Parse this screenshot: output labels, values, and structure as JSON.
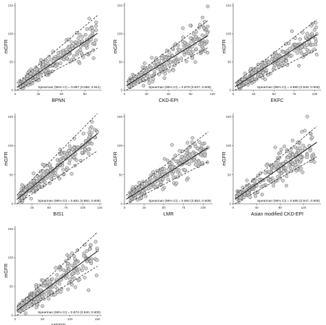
{
  "colors": {
    "point_fill": "#cccccc",
    "point_stroke": "#555555",
    "line": "#222222",
    "axis": "#333333"
  },
  "chart_data": [
    {
      "type": "scatter",
      "xlabel": "BPNN",
      "ylabel": "mGFR",
      "xlim": [
        0,
        112
      ],
      "ylim": [
        0,
        155
      ],
      "xticks": [
        "0",
        "30",
        "60",
        "90"
      ],
      "xtick_values": [
        0,
        30,
        60,
        90
      ],
      "yticks": [
        "0",
        "50",
        "100",
        "150"
      ],
      "ytick_values": [
        0,
        50,
        100,
        150
      ],
      "annotation": "Spearman (95% CI) = 0.887 (0.856, 0.911)",
      "fit": {
        "slope": 0.92,
        "intercept": 3
      },
      "band": {
        "lower_slope": 0.72,
        "lower_intercept": -2,
        "upper_slope": 1.15,
        "upper_intercept": 10
      },
      "grid": false,
      "legend": "none"
    },
    {
      "type": "scatter",
      "xlabel": "CKD-EPI",
      "ylabel": "mGFR",
      "xlim": [
        0,
        120
      ],
      "ylim": [
        0,
        155
      ],
      "xticks": [
        "0",
        "30",
        "60",
        "90",
        "120"
      ],
      "xtick_values": [
        0,
        30,
        60,
        90,
        120
      ],
      "yticks": [
        "0",
        "50",
        "100",
        "150"
      ],
      "ytick_values": [
        0,
        50,
        100,
        150
      ],
      "annotation": "Spearman (95% CI) = 0.879 (0.847, 0.905)",
      "fit": {
        "slope": 0.8,
        "intercept": 6
      },
      "band": {
        "lower_slope": 0.68,
        "lower_intercept": -2,
        "upper_slope": 0.98,
        "upper_intercept": 12
      },
      "grid": false,
      "legend": "none"
    },
    {
      "type": "scatter",
      "xlabel": "EKFC",
      "ylabel": "mGFR",
      "xlim": [
        0,
        108
      ],
      "ylim": [
        0,
        155
      ],
      "xticks": [
        "0",
        "25",
        "50",
        "75",
        "100"
      ],
      "xtick_values": [
        0,
        25,
        50,
        75,
        100
      ],
      "yticks": [
        "0",
        "50",
        "100",
        "150"
      ],
      "ytick_values": [
        0,
        50,
        100,
        150
      ],
      "annotation": "Spearman (95% CI) = 0.880 (0.848, 0.906)",
      "fit": {
        "slope": 0.92,
        "intercept": 4
      },
      "band": {
        "lower_slope": 0.72,
        "lower_intercept": -2,
        "upper_slope": 1.12,
        "upper_intercept": 10
      },
      "grid": false,
      "legend": "none"
    },
    {
      "type": "scatter",
      "xlabel": "BIS1",
      "ylabel": "mGFR",
      "xlim": [
        0,
        128
      ],
      "ylim": [
        0,
        155
      ],
      "xticks": [
        "25",
        "50",
        "75",
        "100",
        "125"
      ],
      "xtick_values": [
        25,
        50,
        75,
        100,
        125
      ],
      "yticks": [
        "0",
        "50",
        "100",
        "150"
      ],
      "ytick_values": [
        0,
        50,
        100,
        150
      ],
      "annotation": "Spearman (95% CI) = 0.881 (0.850, 0.906)",
      "fit": {
        "slope": 0.95,
        "intercept": 5
      },
      "band": {
        "lower_slope": 0.78,
        "lower_intercept": -4,
        "upper_slope": 1.2,
        "upper_intercept": 12
      },
      "grid": false,
      "legend": "none"
    },
    {
      "type": "scatter",
      "xlabel": "LMR",
      "ylabel": "mGFR",
      "xlim": [
        0,
        112
      ],
      "ylim": [
        0,
        155
      ],
      "xticks": [
        "0",
        "25",
        "50",
        "75",
        "100"
      ],
      "xtick_values": [
        0,
        25,
        50,
        75,
        100
      ],
      "yticks": [
        "0",
        "50",
        "100",
        "150"
      ],
      "ytick_values": [
        0,
        50,
        100,
        150
      ],
      "annotation": "Spearman (95% CI) = 0.884 (0.853, 0.909)",
      "fit": {
        "slope": 0.85,
        "intercept": 6
      },
      "band": {
        "lower_slope": 0.7,
        "lower_intercept": -2,
        "upper_slope": 1.05,
        "upper_intercept": 12
      },
      "grid": false,
      "legend": "none"
    },
    {
      "type": "scatter",
      "xlabel": "Asian modified CKD-EPI",
      "ylabel": "mGFR",
      "xlim": [
        0,
        150
      ],
      "ylim": [
        0,
        155
      ],
      "xticks": [
        "0",
        "40",
        "80",
        "120"
      ],
      "xtick_values": [
        0,
        40,
        80,
        120
      ],
      "yticks": [
        "0",
        "50",
        "100",
        "150"
      ],
      "ytick_values": [
        0,
        50,
        100,
        150
      ],
      "annotation": "Spearman (95% CI) = 0.880 (0.847, 0.905)",
      "fit": {
        "slope": 0.7,
        "intercept": 6
      },
      "band": {
        "lower_slope": 0.58,
        "lower_intercept": -2,
        "upper_slope": 0.85,
        "upper_intercept": 12
      },
      "grid": false,
      "legend": "none"
    },
    {
      "type": "scatter",
      "xlabel": "MDRD",
      "ylabel": "mGFR",
      "xlim": [
        0,
        158
      ],
      "ylim": [
        0,
        155
      ],
      "xticks": [
        "0",
        "50",
        "100",
        "150"
      ],
      "xtick_values": [
        0,
        50,
        100,
        150
      ],
      "yticks": [
        "0",
        "50",
        "100",
        "150"
      ],
      "ytick_values": [
        0,
        50,
        100,
        150
      ],
      "annotation": "Spearman (95% CI) = 0.874 (0.840, 0.900)",
      "fit": {
        "slope": 0.7,
        "intercept": 6
      },
      "band": {
        "lower_slope": 0.58,
        "lower_intercept": -2,
        "upper_slope": 0.88,
        "upper_intercept": 12
      },
      "grid": false,
      "legend": "none"
    }
  ]
}
